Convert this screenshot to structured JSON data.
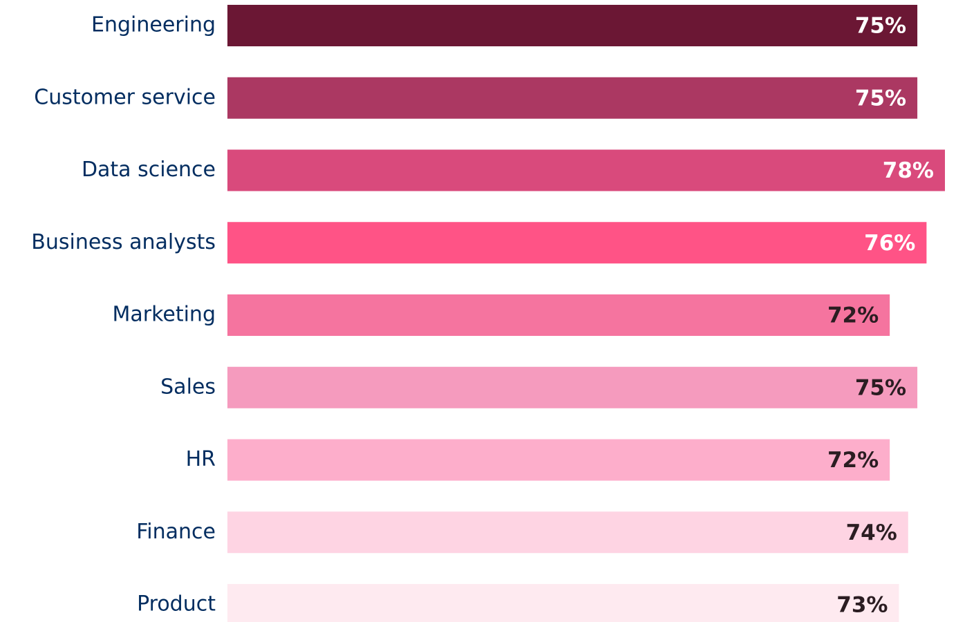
{
  "chart_data": {
    "type": "bar",
    "orientation": "horizontal",
    "categories": [
      "Engineering",
      "Customer service",
      "Data science",
      "Business analysts",
      "Marketing",
      "Sales",
      "HR",
      "Finance",
      "Product"
    ],
    "values": [
      75,
      75,
      78,
      76,
      72,
      75,
      72,
      74,
      73
    ],
    "value_labels": [
      "75%",
      "75%",
      "78%",
      "76%",
      "72%",
      "75%",
      "72%",
      "74%",
      "73%"
    ],
    "colors": [
      "#6b1734",
      "#ab3862",
      "#d94a7c",
      "#ff5386",
      "#f5749f",
      "#f59bbe",
      "#fdaecb",
      "#fed4e3",
      "#feeaf0"
    ]
  }
}
